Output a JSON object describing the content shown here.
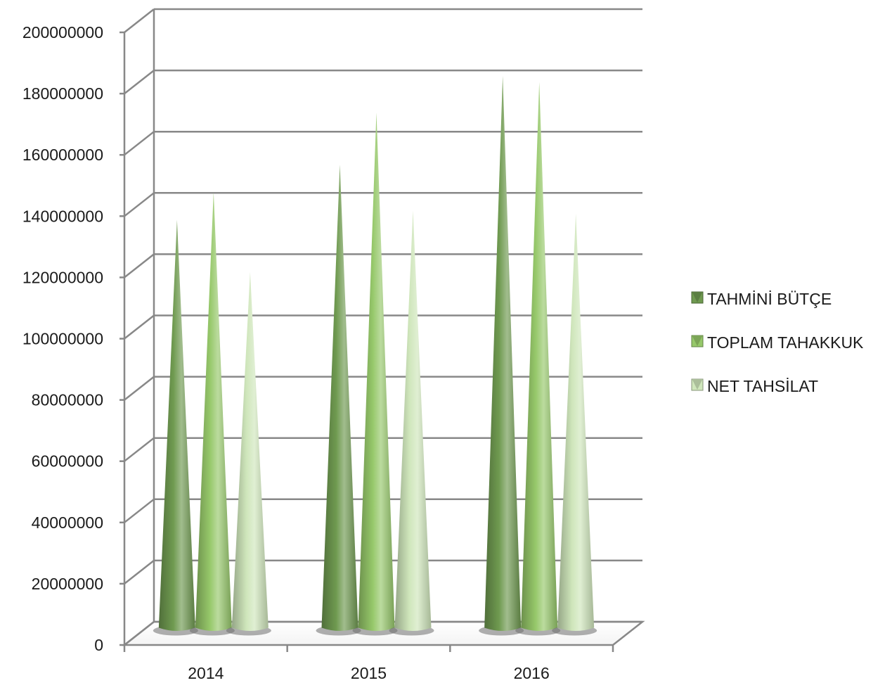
{
  "chart_data": {
    "type": "bar",
    "style": "3d-cone",
    "categories": [
      "2014",
      "2015",
      "2016"
    ],
    "series": [
      {
        "name": "TAHMİNİ BÜTÇE",
        "values": [
          135000000,
          153000000,
          182000000
        ],
        "color": "#6f9a50"
      },
      {
        "name": "TOPLAM TAHAKKUK",
        "values": [
          144000000,
          170000000,
          180000000
        ],
        "color": "#96c86a"
      },
      {
        "name": "NET TAHSİLAT",
        "values": [
          118000000,
          138000000,
          137000000
        ],
        "color": "#cfe6bb"
      }
    ],
    "yticks": [
      "0",
      "20000000",
      "40000000",
      "60000000",
      "80000000",
      "100000000",
      "120000000",
      "140000000",
      "160000000",
      "180000000",
      "200000000"
    ],
    "ylim": [
      0,
      200000000
    ],
    "grid": true,
    "legend_position": "right"
  }
}
